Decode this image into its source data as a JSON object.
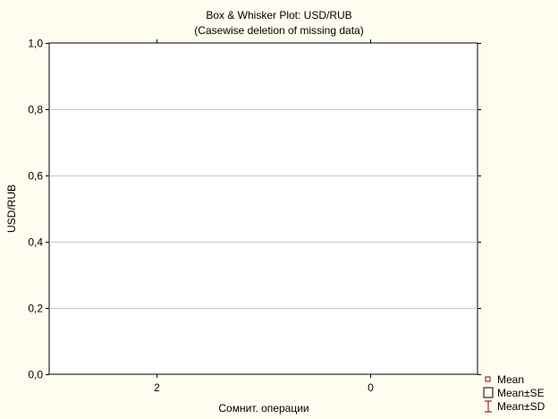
{
  "chart_data": {
    "type": "box",
    "title": "Box & Whisker Plot: USD/RUB",
    "subtitle": "(Casewise deletion of missing data)",
    "xlabel": "Сомнит. операции",
    "ylabel": "USD/RUB",
    "categories": [
      "2",
      "0"
    ],
    "ylim": [
      0,
      1
    ],
    "yticks": [
      0,
      0.2,
      0.4,
      0.6,
      0.8,
      1
    ],
    "ytick_labels": [
      "0,0",
      "0,2",
      "0,4",
      "0,6",
      "0,8",
      "1,0"
    ],
    "grid": true,
    "legend_position": "bottom-right",
    "legend": [
      {
        "name": "Mean",
        "marker": "small-square"
      },
      {
        "name": "Mean±SE",
        "marker": "box"
      },
      {
        "name": "Mean±SD",
        "marker": "whisker"
      }
    ],
    "colors": {
      "background": "#fffdf0",
      "plot_area": "#ffffff",
      "grid": "#c8c8c8",
      "axis": "#000000",
      "marker": "#8b0000"
    }
  }
}
